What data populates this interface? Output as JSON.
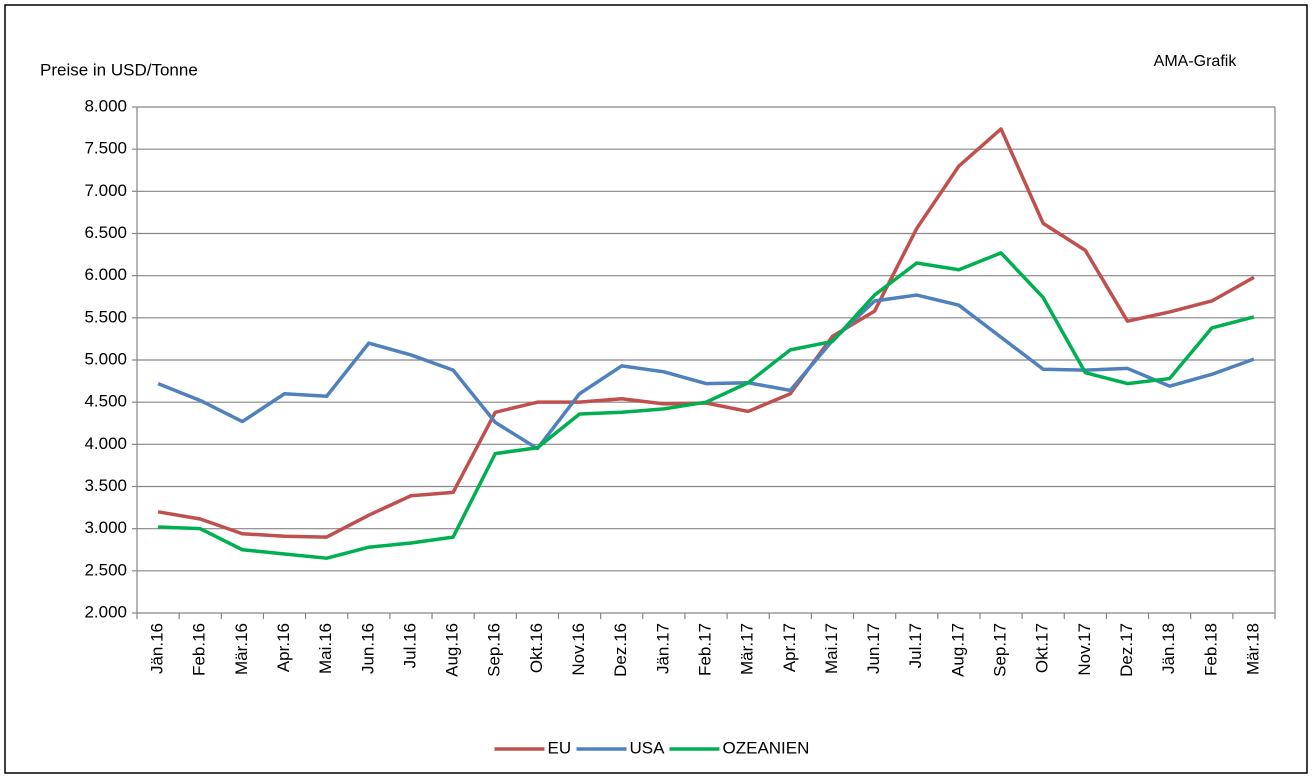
{
  "chart_data": {
    "type": "line",
    "y_label": "Preise in USD/Tonne",
    "annotation": "AMA-Grafik",
    "categories": [
      "Jän.16",
      "Feb.16",
      "Mär.16",
      "Apr.16",
      "Mai.16",
      "Jun.16",
      "Jul.16",
      "Aug.16",
      "Sep.16",
      "Okt.16",
      "Nov.16",
      "Dez.16",
      "Jän.17",
      "Feb.17",
      "Mär.17",
      "Apr.17",
      "Mai.17",
      "Jun.17",
      "Jul.17",
      "Aug.17",
      "Sep.17",
      "Okt.17",
      "Nov.17",
      "Dez.17",
      "Jän.18",
      "Feb.18",
      "Mär.18"
    ],
    "series": [
      {
        "name": "EU",
        "color": "#c0504d",
        "values": [
          3200,
          3115,
          2940,
          2910,
          2900,
          3160,
          3390,
          3430,
          4380,
          4500,
          4500,
          4540,
          4480,
          4490,
          4390,
          4600,
          5280,
          5580,
          6560,
          7300,
          7740,
          6620,
          6300,
          5460,
          5570,
          5700,
          5980
        ]
      },
      {
        "name": "USA",
        "color": "#4f81bd",
        "values": [
          4720,
          4520,
          4270,
          4600,
          4570,
          5200,
          5060,
          4880,
          4260,
          3950,
          4600,
          4930,
          4860,
          4720,
          4730,
          4640,
          5230,
          5700,
          5770,
          5650,
          5270,
          4890,
          4880,
          4900,
          4690,
          4830,
          5010
        ]
      },
      {
        "name": "OZEANIEN",
        "color": "#00b050",
        "values": [
          3020,
          3000,
          2750,
          2700,
          2650,
          2780,
          2830,
          2900,
          3890,
          3960,
          4360,
          4380,
          4420,
          4500,
          4730,
          5120,
          5220,
          5770,
          6150,
          6070,
          6270,
          5740,
          4850,
          4720,
          4780,
          5380,
          5510
        ]
      }
    ],
    "ylim": [
      2000,
      8000
    ],
    "yticks": [
      {
        "value": 2000,
        "label": "2.000"
      },
      {
        "value": 2500,
        "label": "2.500"
      },
      {
        "value": 3000,
        "label": "3.000"
      },
      {
        "value": 3500,
        "label": "3.500"
      },
      {
        "value": 4000,
        "label": "4.000"
      },
      {
        "value": 4500,
        "label": "4.500"
      },
      {
        "value": 5000,
        "label": "5.000"
      },
      {
        "value": 5500,
        "label": "5.500"
      },
      {
        "value": 6000,
        "label": "6.000"
      },
      {
        "value": 6500,
        "label": "6.500"
      },
      {
        "value": 7000,
        "label": "7.000"
      },
      {
        "value": 7500,
        "label": "7.500"
      },
      {
        "value": 8000,
        "label": "8.000"
      }
    ],
    "grid": true,
    "legend": "bottom"
  }
}
